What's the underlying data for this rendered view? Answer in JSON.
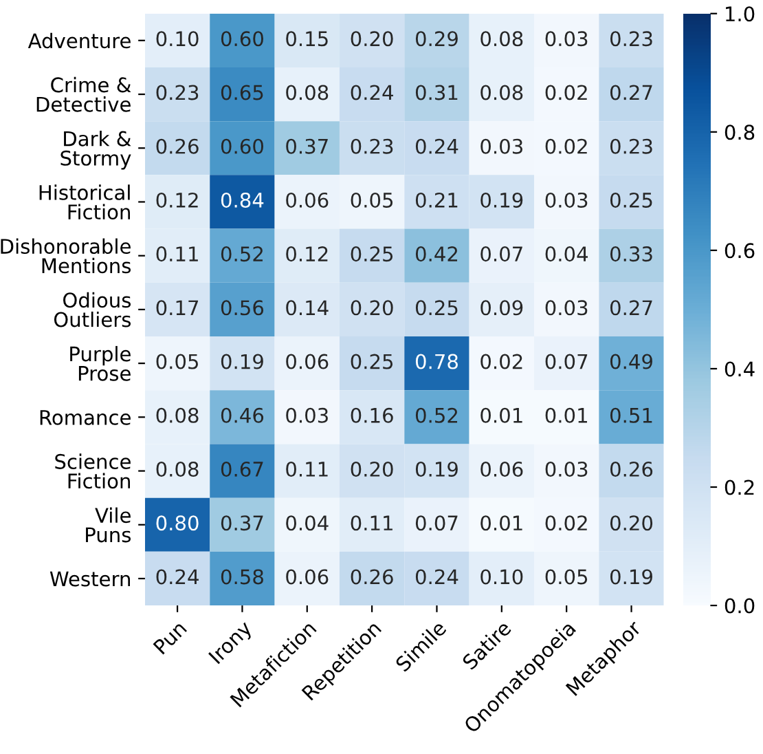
{
  "chart_data": {
    "type": "heatmap",
    "categories": [
      "Pun",
      "Irony",
      "Metafiction",
      "Repetition",
      "Simile",
      "Satire",
      "Onomatopoeia",
      "Metaphor"
    ],
    "y_categories": [
      "Adventure",
      "Crime &\nDetective",
      "Dark &\nStormy",
      "Historical\nFiction",
      "Dishonorable\nMentions",
      "Odious\nOutliers",
      "Purple\nProse",
      "Romance",
      "Science\nFiction",
      "Vile\nPuns",
      "Western"
    ],
    "cells": [
      [
        0.1,
        0.6,
        0.15,
        0.2,
        0.29,
        0.08,
        0.03,
        0.23
      ],
      [
        0.23,
        0.65,
        0.08,
        0.24,
        0.31,
        0.08,
        0.02,
        0.27
      ],
      [
        0.26,
        0.6,
        0.37,
        0.23,
        0.24,
        0.03,
        0.02,
        0.23
      ],
      [
        0.12,
        0.84,
        0.06,
        0.05,
        0.21,
        0.19,
        0.03,
        0.25
      ],
      [
        0.11,
        0.52,
        0.12,
        0.25,
        0.42,
        0.07,
        0.04,
        0.33
      ],
      [
        0.17,
        0.56,
        0.14,
        0.2,
        0.25,
        0.09,
        0.03,
        0.27
      ],
      [
        0.05,
        0.19,
        0.06,
        0.25,
        0.78,
        0.02,
        0.07,
        0.49
      ],
      [
        0.08,
        0.46,
        0.03,
        0.16,
        0.52,
        0.01,
        0.01,
        0.51
      ],
      [
        0.08,
        0.67,
        0.11,
        0.2,
        0.19,
        0.06,
        0.03,
        0.26
      ],
      [
        0.8,
        0.37,
        0.04,
        0.11,
        0.07,
        0.01,
        0.02,
        0.2
      ],
      [
        0.24,
        0.58,
        0.06,
        0.26,
        0.24,
        0.1,
        0.05,
        0.19
      ]
    ],
    "cell_labels": [
      [
        "0.10",
        "0.60",
        "0.15",
        "0.20",
        "0.29",
        "0.08",
        "0.03",
        "0.23"
      ],
      [
        "0.23",
        "0.65",
        "0.08",
        "0.24",
        "0.31",
        "0.08",
        "0.02",
        "0.27"
      ],
      [
        "0.26",
        "0.60",
        "0.37",
        "0.23",
        "0.24",
        "0.03",
        "0.02",
        "0.23"
      ],
      [
        "0.12",
        "0.84",
        "0.06",
        "0.05",
        "0.21",
        "0.19",
        "0.03",
        "0.25"
      ],
      [
        "0.11",
        "0.52",
        "0.12",
        "0.25",
        "0.42",
        "0.07",
        "0.04",
        "0.33"
      ],
      [
        "0.17",
        "0.56",
        "0.14",
        "0.20",
        "0.25",
        "0.09",
        "0.03",
        "0.27"
      ],
      [
        "0.05",
        "0.19",
        "0.06",
        "0.25",
        "0.78",
        "0.02",
        "0.07",
        "0.49"
      ],
      [
        "0.08",
        "0.46",
        "0.03",
        "0.16",
        "0.52",
        "0.01",
        "0.01",
        "0.51"
      ],
      [
        "0.08",
        "0.67",
        "0.11",
        "0.20",
        "0.19",
        "0.06",
        "0.03",
        "0.26"
      ],
      [
        "0.80",
        "0.37",
        "0.04",
        "0.11",
        "0.07",
        "0.01",
        "0.02",
        "0.20"
      ],
      [
        "0.24",
        "0.58",
        "0.06",
        "0.26",
        "0.24",
        "0.10",
        "0.05",
        "0.19"
      ]
    ],
    "clim": [
      0.0,
      1.0
    ],
    "cticks": [
      {
        "value": 0.0,
        "label": "0.0"
      },
      {
        "value": 0.2,
        "label": "0.2"
      },
      {
        "value": 0.4,
        "label": "0.4"
      },
      {
        "value": 0.6,
        "label": "0.6"
      },
      {
        "value": 0.8,
        "label": "0.8"
      },
      {
        "value": 1.0,
        "label": "1.0"
      }
    ]
  }
}
